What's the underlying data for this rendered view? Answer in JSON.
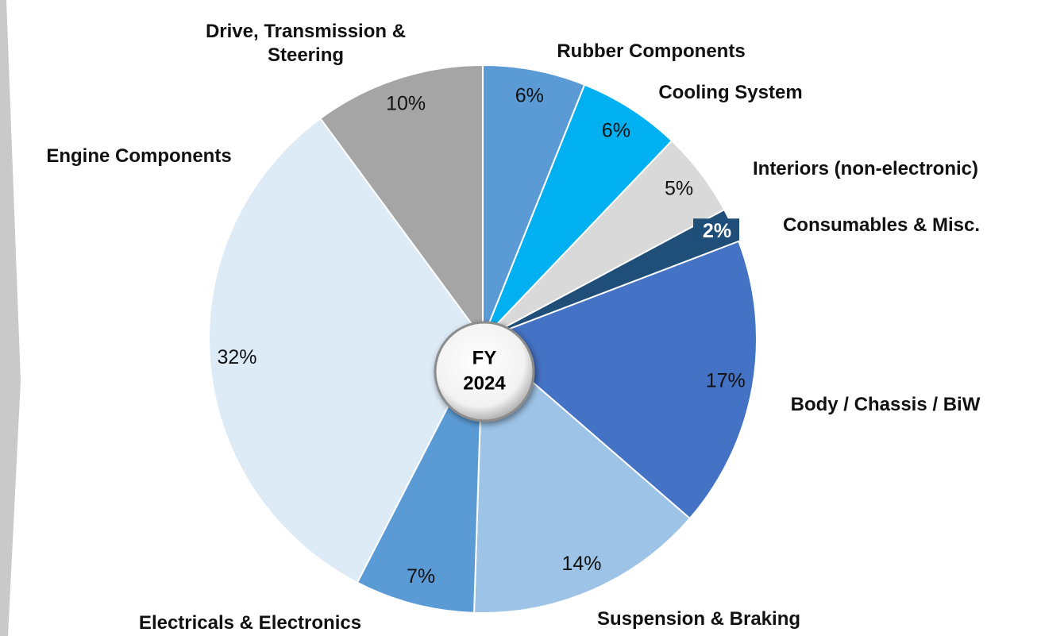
{
  "chart_data": {
    "type": "pie",
    "center_label": "FY 2024",
    "categories": [
      "Rubber Components",
      "Cooling System",
      "Interiors (non-electronic)",
      "Consumables & Misc.",
      "Body / Chassis / BiW",
      "Suspension & Braking",
      "Electricals & Electronics",
      "Engine Components",
      "Drive, Transmission & Steering"
    ],
    "values": [
      6,
      6,
      5,
      2,
      17,
      14,
      7,
      32,
      10
    ],
    "value_labels": [
      "6%",
      "6%",
      "5%",
      "2%",
      "17%",
      "14%",
      "7%",
      "32%",
      "10%"
    ],
    "colors": [
      "#5b9bd5",
      "#00b0f0",
      "#d9d9d9",
      "#1f4e79",
      "#4472c4",
      "#9dc3e6",
      "#5b9bd5",
      "#ddebf7",
      "#a5a5a5"
    ]
  }
}
